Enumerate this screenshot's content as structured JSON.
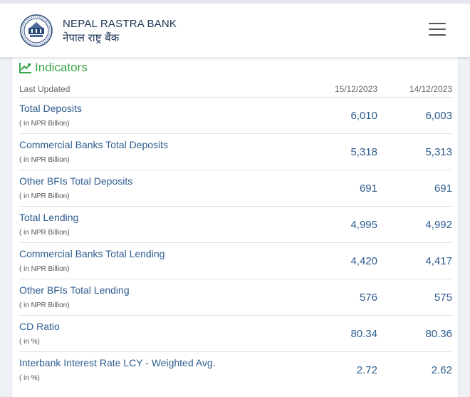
{
  "header": {
    "bank_name_en": "NEPAL RASTRA BANK",
    "bank_name_np": "नेपाल राष्ट्र बैंक",
    "logo_icon": "nrb-seal-icon",
    "menu_icon": "hamburger-menu-icon"
  },
  "indicators": {
    "title": "Indicators",
    "title_icon": "line-chart-icon",
    "accent_color": "#3aa64a",
    "last_updated_label": "Last Updated",
    "date_1": "15/12/2023",
    "date_2": "14/12/2023",
    "rows": [
      {
        "label": "Total Deposits",
        "unit": "( in NPR Billion)",
        "v1": "6,010",
        "v2": "6,003"
      },
      {
        "label": "Commercial Banks Total Deposits",
        "unit": "( in NPR Billion)",
        "v1": "5,318",
        "v2": "5,313"
      },
      {
        "label": "Other BFIs Total Deposits",
        "unit": "( in NPR Billion)",
        "v1": "691",
        "v2": "691"
      },
      {
        "label": "Total Lending",
        "unit": "( in NPR Billion)",
        "v1": "4,995",
        "v2": "4,992"
      },
      {
        "label": "Commercial Banks Total Lending",
        "unit": "( in NPR Billion)",
        "v1": "4,420",
        "v2": "4,417"
      },
      {
        "label": "Other BFIs Total Lending",
        "unit": "( in NPR Billion)",
        "v1": "576",
        "v2": "575"
      },
      {
        "label": "CD Ratio",
        "unit": "( in %)",
        "v1": "80.34",
        "v2": "80.36"
      },
      {
        "label": "Interbank Interest Rate LCY - Weighted Avg.",
        "unit": "( in %)",
        "v1": "2.72",
        "v2": "2.62"
      }
    ]
  }
}
